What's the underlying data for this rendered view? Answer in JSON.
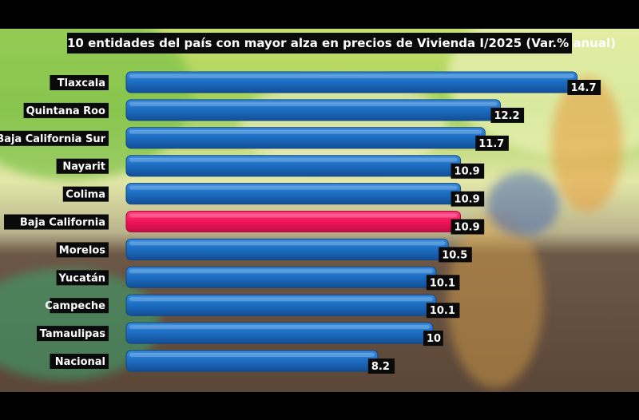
{
  "chart_data": {
    "type": "bar",
    "orientation": "horizontal",
    "title": "10 entidades del país con mayor alza en precios de Vivienda I/2025 (Var.% anual)",
    "categories": [
      "Tlaxcala",
      "Quintana Roo",
      "Baja California Sur",
      "Nayarit",
      "Colima",
      "Baja California",
      "Morelos",
      "Yucatán",
      "Campeche",
      "Tamaulipas",
      "Nacional"
    ],
    "values": [
      14.7,
      12.2,
      11.7,
      10.9,
      10.9,
      10.9,
      10.5,
      10.1,
      10.1,
      10,
      8.2
    ],
    "value_labels": [
      "14.7",
      "12.2",
      "11.7",
      "10.9",
      "10.9",
      "10.9",
      "10.5",
      "10.1",
      "10.1",
      "10",
      "8.2"
    ],
    "highlight_category": "Baja California",
    "colors": {
      "bar": "#1d6fc4",
      "highlight": "#f0145a",
      "label_box": "#0a0a0a",
      "text": "#ffffff"
    },
    "xlim": [
      0,
      16
    ],
    "grid": false,
    "legend": "none"
  }
}
